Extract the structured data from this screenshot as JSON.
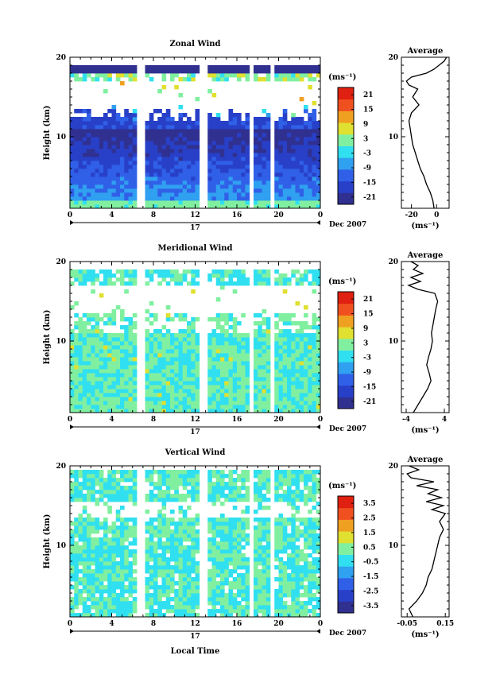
{
  "figure": {
    "xlabel": "Local Time",
    "date_label": "Dec 2007",
    "day_label": "17"
  },
  "chart_data": [
    {
      "type": "heatmap",
      "title": "Zonal Wind",
      "ylabel": "Height (km)",
      "unit": "(ms⁻¹)",
      "x_ticks": [
        "0",
        "4",
        "8",
        "12",
        "16",
        "20",
        "0"
      ],
      "xlim": [
        0,
        24
      ],
      "y_ticks": [
        "20",
        "10"
      ],
      "ylim": [
        1,
        20
      ],
      "colorbar_ticks": [
        "21",
        "15",
        "9",
        "3",
        "-3",
        "-9",
        "-15",
        "-21"
      ],
      "colorbar_range": [
        -24,
        24
      ],
      "colorbar_colors": [
        "#303090",
        "#2840c8",
        "#3060e8",
        "#30a0f0",
        "#30e0f0",
        "#80f0a0",
        "#e0e030",
        "#f0a020",
        "#f05020",
        "#e02010"
      ],
      "gaps_local_time": [
        6.8,
        12.8,
        17.5,
        19.3
      ],
      "profile": {
        "title": "Average",
        "xlabel": "(ms⁻¹)",
        "x_ticks": [
          "-20",
          "0"
        ],
        "xlim": [
          -28,
          10
        ],
        "y_ticks": [
          "20",
          "10"
        ],
        "heights_km": [
          1,
          2,
          3,
          4,
          5,
          6,
          7,
          8,
          9,
          10,
          11,
          12,
          13,
          14,
          15,
          16,
          16.5,
          17,
          17.5,
          18,
          18.5,
          19,
          19.5,
          20
        ],
        "values": [
          -2,
          -3,
          -5,
          -8,
          -10,
          -13,
          -15,
          -17,
          -19,
          -20,
          -21,
          -22,
          -20,
          -14,
          -19,
          -15,
          -22,
          -24,
          -20,
          -8,
          -2,
          2,
          6,
          8
        ]
      }
    },
    {
      "type": "heatmap",
      "title": "Meridional Wind",
      "ylabel": "Height (km)",
      "unit": "(ms⁻¹)",
      "x_ticks": [
        "0",
        "4",
        "8",
        "12",
        "16",
        "20",
        "0"
      ],
      "xlim": [
        0,
        24
      ],
      "y_ticks": [
        "20",
        "10"
      ],
      "ylim": [
        1,
        20
      ],
      "colorbar_ticks": [
        "21",
        "15",
        "9",
        "3",
        "-3",
        "-9",
        "-15",
        "-21"
      ],
      "colorbar_range": [
        -24,
        24
      ],
      "colorbar_colors": [
        "#303090",
        "#2840c8",
        "#3060e8",
        "#30a0f0",
        "#30e0f0",
        "#80f0a0",
        "#e0e030",
        "#f0a020",
        "#f05020",
        "#e02010"
      ],
      "gaps_local_time": [
        6.8,
        12.8,
        17.5,
        19.3
      ],
      "profile": {
        "title": "Average",
        "xlabel": "(ms⁻¹)",
        "x_ticks": [
          "-4",
          "4"
        ],
        "xlim": [
          -5,
          5
        ],
        "y_ticks": [
          "20",
          "10"
        ],
        "heights_km": [
          1,
          2,
          3,
          4,
          5,
          6,
          7,
          8,
          9,
          10,
          11,
          12,
          13,
          14,
          15,
          16,
          16.5,
          17,
          17.5,
          18,
          18.5,
          19,
          19.5,
          20
        ],
        "values": [
          -2.5,
          -1.5,
          -0.5,
          0.5,
          1.2,
          0.8,
          0.3,
          0.7,
          1.2,
          1.5,
          1.3,
          1.6,
          1.9,
          2.2,
          2.6,
          2.0,
          -1.5,
          -3.5,
          -1.0,
          -3.0,
          -0.5,
          -2.5,
          -1.5,
          -3.0
        ]
      }
    },
    {
      "type": "heatmap",
      "title": "Vertical Wind",
      "ylabel": "Height (km)",
      "unit": "(ms⁻¹)",
      "x_ticks": [
        "0",
        "4",
        "8",
        "12",
        "16",
        "20",
        "0"
      ],
      "xlim": [
        0,
        24
      ],
      "y_ticks": [
        "20",
        "10"
      ],
      "ylim": [
        1,
        20
      ],
      "colorbar_ticks": [
        "3.5",
        "2.5",
        "1.5",
        "0.5",
        "-0.5",
        "-1.5",
        "-2.5",
        "-3.5"
      ],
      "colorbar_range": [
        -4,
        4
      ],
      "colorbar_colors": [
        "#303090",
        "#2840c8",
        "#3060e8",
        "#30a0f0",
        "#30e0f0",
        "#80f0a0",
        "#e0e030",
        "#f0a020",
        "#f05020",
        "#e02010"
      ],
      "gaps_local_time": [
        6.8,
        12.8,
        17.5,
        19.3
      ],
      "profile": {
        "title": "Average",
        "xlabel": "(ms⁻¹)",
        "x_ticks": [
          "-0.05",
          "0.15"
        ],
        "xlim": [
          -0.08,
          0.17
        ],
        "y_ticks": [
          "20",
          "10"
        ],
        "heights_km": [
          1,
          2,
          3,
          4,
          5,
          6,
          7,
          8,
          9,
          10,
          11,
          12,
          13,
          14,
          14.5,
          15,
          15.5,
          16,
          16.5,
          17,
          17.5,
          18,
          18.5,
          19,
          19.5,
          20
        ],
        "values": [
          -0.02,
          -0.04,
          0.0,
          0.03,
          0.05,
          0.06,
          0.08,
          0.09,
          0.1,
          0.11,
          0.12,
          0.14,
          0.12,
          0.15,
          0.08,
          0.14,
          0.05,
          0.13,
          0.06,
          0.11,
          0.0,
          0.09,
          -0.03,
          -0.05,
          0.01,
          -0.04
        ]
      }
    }
  ]
}
